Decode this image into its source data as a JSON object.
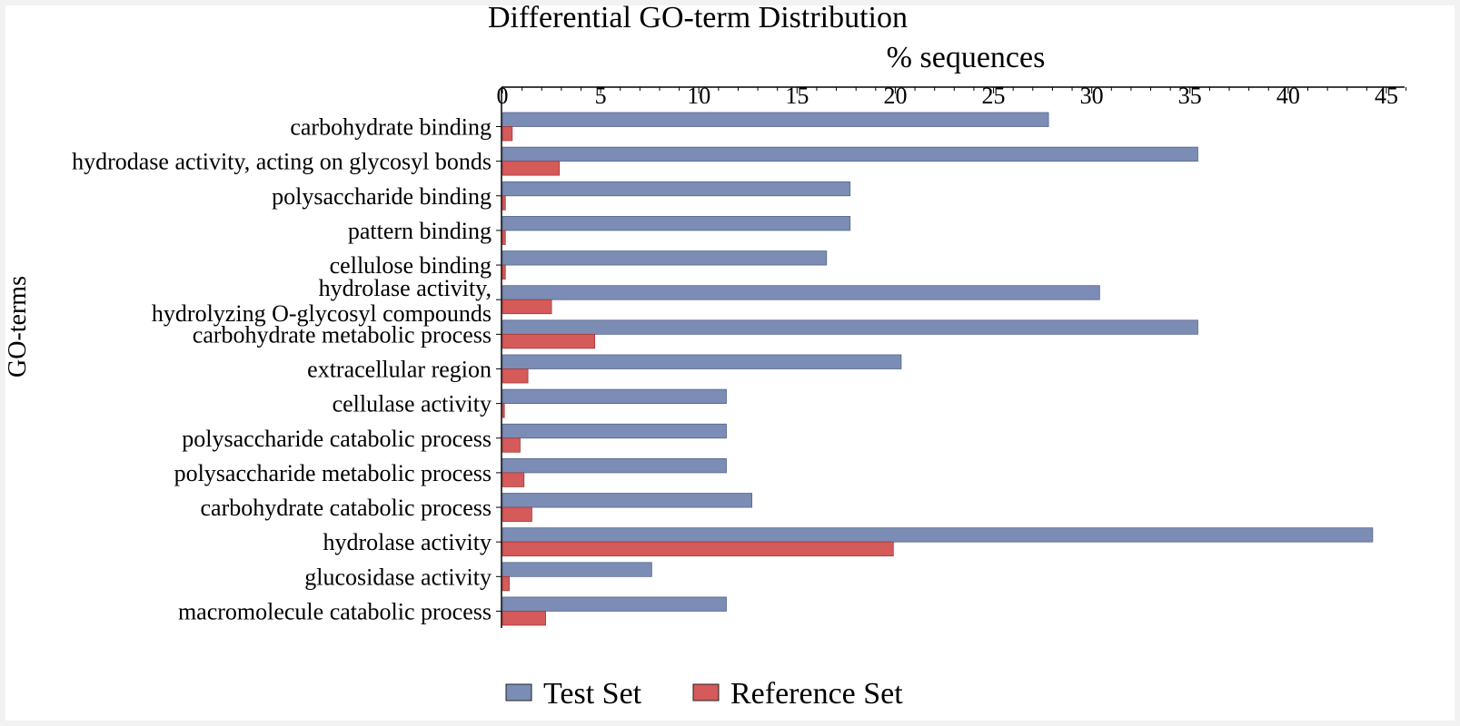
{
  "chart_data": {
    "type": "bar",
    "orientation": "horizontal",
    "title": "Differential GO-term Distribution",
    "xlabel": "% sequences",
    "ylabel": "GO-terms",
    "xlim": [
      0,
      46
    ],
    "xticks": [
      0,
      5,
      10,
      15,
      20,
      25,
      30,
      35,
      40,
      45
    ],
    "grid": false,
    "legend_position": "bottom",
    "categories": [
      [
        "carbohydrate binding"
      ],
      [
        "hydrodase activity, acting on glycosyl bonds"
      ],
      [
        "polysaccharide binding"
      ],
      [
        "pattern binding"
      ],
      [
        "cellulose binding"
      ],
      [
        "hydrolase activity,",
        "hydrolyzing O-glycosyl compounds"
      ],
      [
        "carbohydrate metabolic process"
      ],
      [
        "extracellular region"
      ],
      [
        "cellulase activity"
      ],
      [
        "polysaccharide catabolic process"
      ],
      [
        "polysaccharide metabolic process"
      ],
      [
        "carbohydrate catabolic process"
      ],
      [
        "hydrolase activity"
      ],
      [
        "glucosidase activity"
      ],
      [
        "macromolecule catabolic process"
      ]
    ],
    "series": [
      {
        "name": "Test Set",
        "color": "#7b8db5",
        "values": [
          27.8,
          35.4,
          17.7,
          17.7,
          16.5,
          30.4,
          35.4,
          20.3,
          11.4,
          11.4,
          11.4,
          12.7,
          44.3,
          7.6,
          11.4
        ]
      },
      {
        "name": "Reference Set",
        "color": "#d55a5a",
        "values": [
          0.5,
          2.9,
          0.15,
          0.15,
          0.15,
          2.5,
          4.7,
          1.3,
          0.1,
          0.9,
          1.1,
          1.5,
          19.9,
          0.35,
          2.2
        ]
      }
    ]
  }
}
